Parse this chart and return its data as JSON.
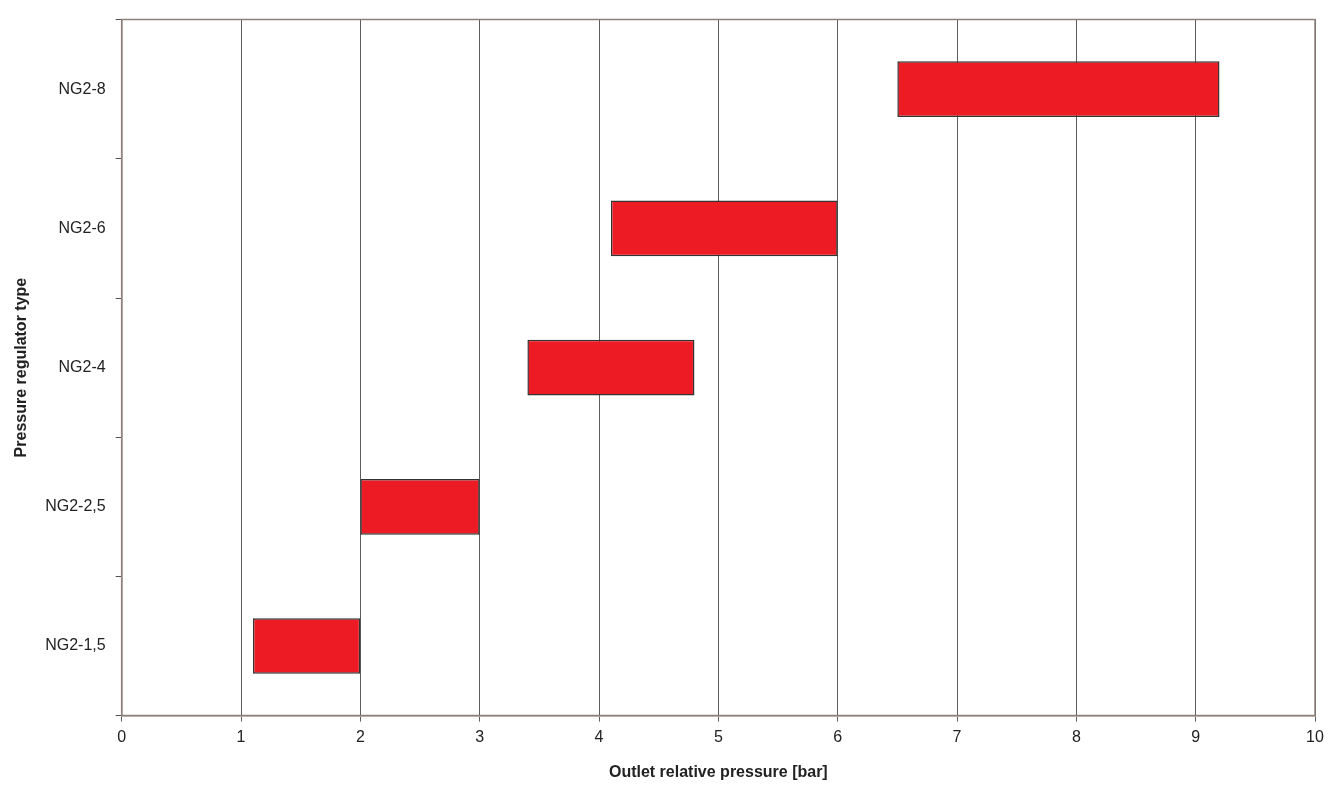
{
  "chart_data": {
    "type": "bar",
    "orientation": "horizontal",
    "xlabel": "Outlet relative pressure [bar]",
    "ylabel": "Pressure regulator type",
    "categories": [
      "NG2-8",
      "NG2-6",
      "NG2-4",
      "NG2-2,5",
      "NG2-1,5"
    ],
    "base": [
      6.5,
      4.1,
      3.4,
      2.0,
      1.1
    ],
    "values": [
      2.7,
      1.9,
      1.4,
      1.0,
      0.9
    ],
    "color": "#ed1c24",
    "xlim": [
      0,
      10
    ],
    "xticks": [
      0,
      1,
      2,
      3,
      4,
      5,
      6,
      7,
      8,
      9,
      10
    ],
    "grid": "x",
    "legend": false
  }
}
